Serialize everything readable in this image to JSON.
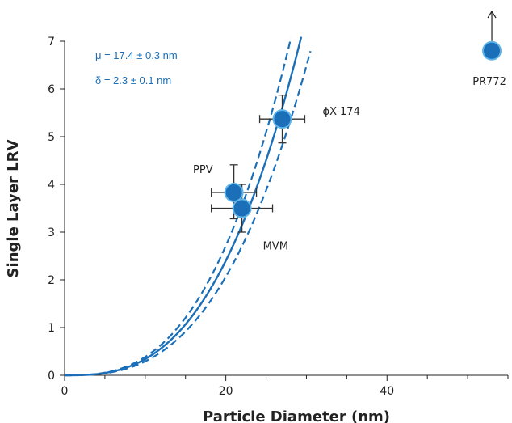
{
  "chart_data": {
    "type": "scatter",
    "title": "",
    "xlabel": "Particle Diameter (nm)",
    "ylabel": "Single Layer LRV",
    "xlim": [
      0,
      55
    ],
    "ylim": [
      0,
      7
    ],
    "xticks": [
      0,
      20,
      40
    ],
    "xticks_minor_step": 5,
    "yticks": [
      0,
      1,
      2,
      3,
      4,
      5,
      6,
      7
    ],
    "grid": false,
    "annotations": [
      "μ = 17.4 ± 0.3 nm",
      "δ = 2.3 ± 0.1 nm"
    ],
    "colors": {
      "points": "#1a6fb8",
      "point_edge": "#5fb4e8",
      "fit": "#1a6fb8",
      "annotation": "#1a6fb8",
      "errorbar": "#333333",
      "axis": "#222222"
    },
    "points": [
      {
        "label": "PPV",
        "x": 21.0,
        "y": 3.83,
        "xerr": 2.8,
        "yerr_low": 0.55,
        "yerr_high": 0.58
      },
      {
        "label": "MVM",
        "x": 22.0,
        "y": 3.5,
        "xerr": 3.8,
        "yerr_low": 0.5,
        "yerr_high": 0.5
      },
      {
        "label": "ϕX-174",
        "x": 27.0,
        "y": 5.37,
        "xerr": 2.8,
        "yerr_low": 0.5,
        "yerr_high": 0.5
      },
      {
        "label": "PR772",
        "x": 53.0,
        "y": 6.8,
        "arrow": "up"
      }
    ],
    "fit": {
      "kind": "power",
      "k": 0.000515,
      "exponent": 2.82,
      "band_scale_low": 0.86,
      "band_scale_high": 1.13,
      "x_range": [
        0,
        30.5
      ]
    }
  }
}
